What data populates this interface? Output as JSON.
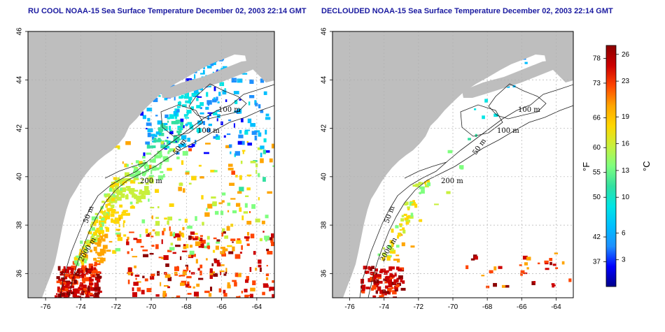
{
  "panels": [
    {
      "title": "RU COOL NOAA-15 Sea Surface Temperature December 02, 2003 22:14 GMT",
      "mode": "raw"
    },
    {
      "title": "DECLOUDED NOAA-15 Sea Surface Temperature December 02, 2003 22:14 GMT",
      "mode": "declouded"
    }
  ],
  "axes": {
    "lon_ticks": [
      "-76",
      "-74",
      "-72",
      "-70",
      "-68",
      "-66",
      "-64"
    ],
    "lat_ticks": [
      "46",
      "44",
      "42",
      "40",
      "38",
      "36"
    ]
  },
  "contour_labels": [
    "100 m",
    "100 m",
    "50 m",
    "200 m",
    "50 m",
    "2000 m"
  ],
  "colorbar": {
    "unit_f": "°F",
    "unit_c": "°C",
    "fahrenheit_ticks": [
      "78",
      "73",
      "66",
      "60",
      "55",
      "50",
      "42",
      "37"
    ],
    "celsius_ticks": [
      "26",
      "23",
      "19",
      "16",
      "13",
      "10",
      "6",
      "3"
    ],
    "colors": [
      "#00008b",
      "#0000ff",
      "#1e90ff",
      "#00bfff",
      "#00e5e5",
      "#33e0a0",
      "#7fff7f",
      "#c8f03c",
      "#ffd700",
      "#ffa500",
      "#ff4500",
      "#cc0000",
      "#8b0000"
    ]
  },
  "colors": {
    "land": "#bebebe",
    "title": "#1a1aa0",
    "grid": "#b0b0b0"
  }
}
